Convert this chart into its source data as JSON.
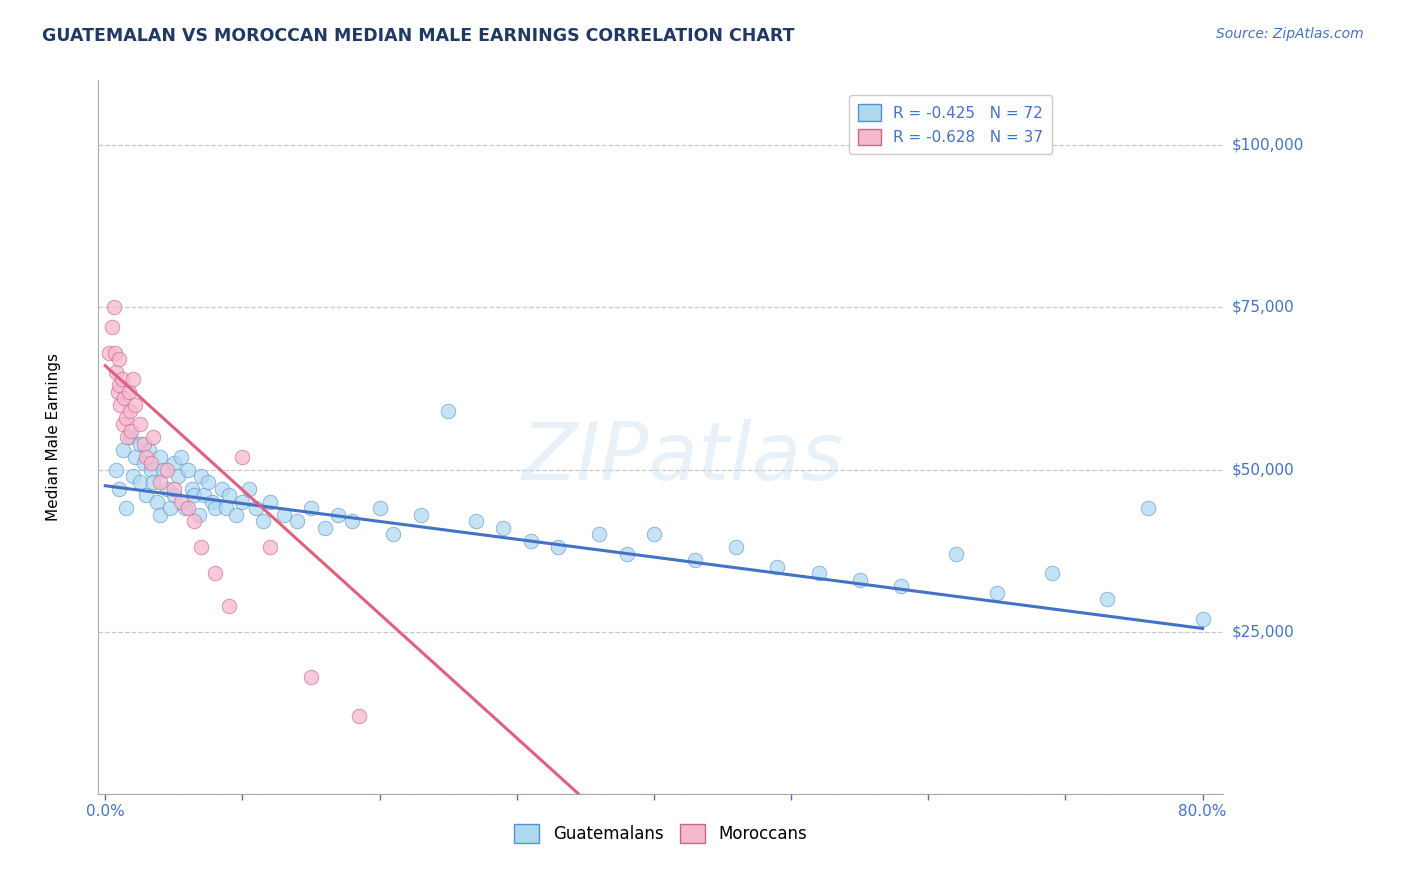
{
  "title": "GUATEMALAN VS MOROCCAN MEDIAN MALE EARNINGS CORRELATION CHART",
  "source_text": "Source: ZipAtlas.com",
  "ylabel": "Median Male Earnings",
  "watermark": "ZIPatlas",
  "xlim": [
    -0.005,
    0.815
  ],
  "ylim": [
    0,
    110000
  ],
  "ytick_vals": [
    0,
    25000,
    50000,
    75000,
    100000
  ],
  "ytick_labels_right": [
    "$25,000",
    "$50,000",
    "$75,000",
    "$100,000"
  ],
  "xtick_positions": [
    0.0,
    0.1,
    0.2,
    0.3,
    0.4,
    0.5,
    0.6,
    0.7,
    0.8
  ],
  "blue_color": "#add8f0",
  "pink_color": "#f5b8ce",
  "blue_edge_color": "#5590cc",
  "pink_edge_color": "#cc6688",
  "blue_line_color": "#4472c4",
  "pink_line_color": "#e06080",
  "title_color": "#1f3864",
  "axis_color": "#4472c4",
  "grid_color": "#c8c8c8",
  "blue_scatter_x": [
    0.008,
    0.01,
    0.013,
    0.015,
    0.018,
    0.02,
    0.022,
    0.025,
    0.025,
    0.028,
    0.03,
    0.032,
    0.033,
    0.035,
    0.038,
    0.04,
    0.04,
    0.042,
    0.045,
    0.047,
    0.05,
    0.05,
    0.053,
    0.055,
    0.058,
    0.06,
    0.063,
    0.065,
    0.068,
    0.07,
    0.072,
    0.075,
    0.078,
    0.08,
    0.085,
    0.088,
    0.09,
    0.095,
    0.1,
    0.105,
    0.11,
    0.115,
    0.12,
    0.13,
    0.14,
    0.15,
    0.16,
    0.17,
    0.18,
    0.2,
    0.21,
    0.23,
    0.25,
    0.27,
    0.29,
    0.31,
    0.33,
    0.36,
    0.38,
    0.4,
    0.43,
    0.46,
    0.49,
    0.52,
    0.55,
    0.58,
    0.62,
    0.65,
    0.69,
    0.73,
    0.76,
    0.8
  ],
  "blue_scatter_y": [
    50000,
    47000,
    53000,
    44000,
    55000,
    49000,
    52000,
    48000,
    54000,
    51000,
    46000,
    53000,
    50000,
    48000,
    45000,
    52000,
    43000,
    50000,
    47000,
    44000,
    51000,
    46000,
    49000,
    52000,
    44000,
    50000,
    47000,
    46000,
    43000,
    49000,
    46000,
    48000,
    45000,
    44000,
    47000,
    44000,
    46000,
    43000,
    45000,
    47000,
    44000,
    42000,
    45000,
    43000,
    42000,
    44000,
    41000,
    43000,
    42000,
    44000,
    40000,
    43000,
    59000,
    42000,
    41000,
    39000,
    38000,
    40000,
    37000,
    40000,
    36000,
    38000,
    35000,
    34000,
    33000,
    32000,
    37000,
    31000,
    34000,
    30000,
    44000,
    27000
  ],
  "pink_scatter_x": [
    0.003,
    0.005,
    0.006,
    0.007,
    0.008,
    0.009,
    0.01,
    0.01,
    0.011,
    0.012,
    0.013,
    0.014,
    0.015,
    0.016,
    0.017,
    0.018,
    0.019,
    0.02,
    0.022,
    0.025,
    0.028,
    0.03,
    0.033,
    0.035,
    0.04,
    0.045,
    0.05,
    0.055,
    0.06,
    0.065,
    0.07,
    0.08,
    0.09,
    0.1,
    0.12,
    0.15,
    0.185
  ],
  "pink_scatter_y": [
    68000,
    72000,
    75000,
    68000,
    65000,
    62000,
    67000,
    63000,
    60000,
    64000,
    57000,
    61000,
    58000,
    55000,
    62000,
    59000,
    56000,
    64000,
    60000,
    57000,
    54000,
    52000,
    51000,
    55000,
    48000,
    50000,
    47000,
    45000,
    44000,
    42000,
    38000,
    34000,
    29000,
    52000,
    38000,
    18000,
    12000
  ],
  "blue_trend_x": [
    0.0,
    0.8
  ],
  "blue_trend_y": [
    47500,
    25500
  ],
  "pink_trend_x": [
    0.0,
    0.345
  ],
  "pink_trend_y": [
    66000,
    0
  ],
  "stats_R_blue": "R = -0.425",
  "stats_N_blue": "N = 72",
  "stats_R_pink": "R = -0.628",
  "stats_N_pink": "N = 37",
  "bottom_legend": [
    "Guatemalans",
    "Moroccans"
  ]
}
